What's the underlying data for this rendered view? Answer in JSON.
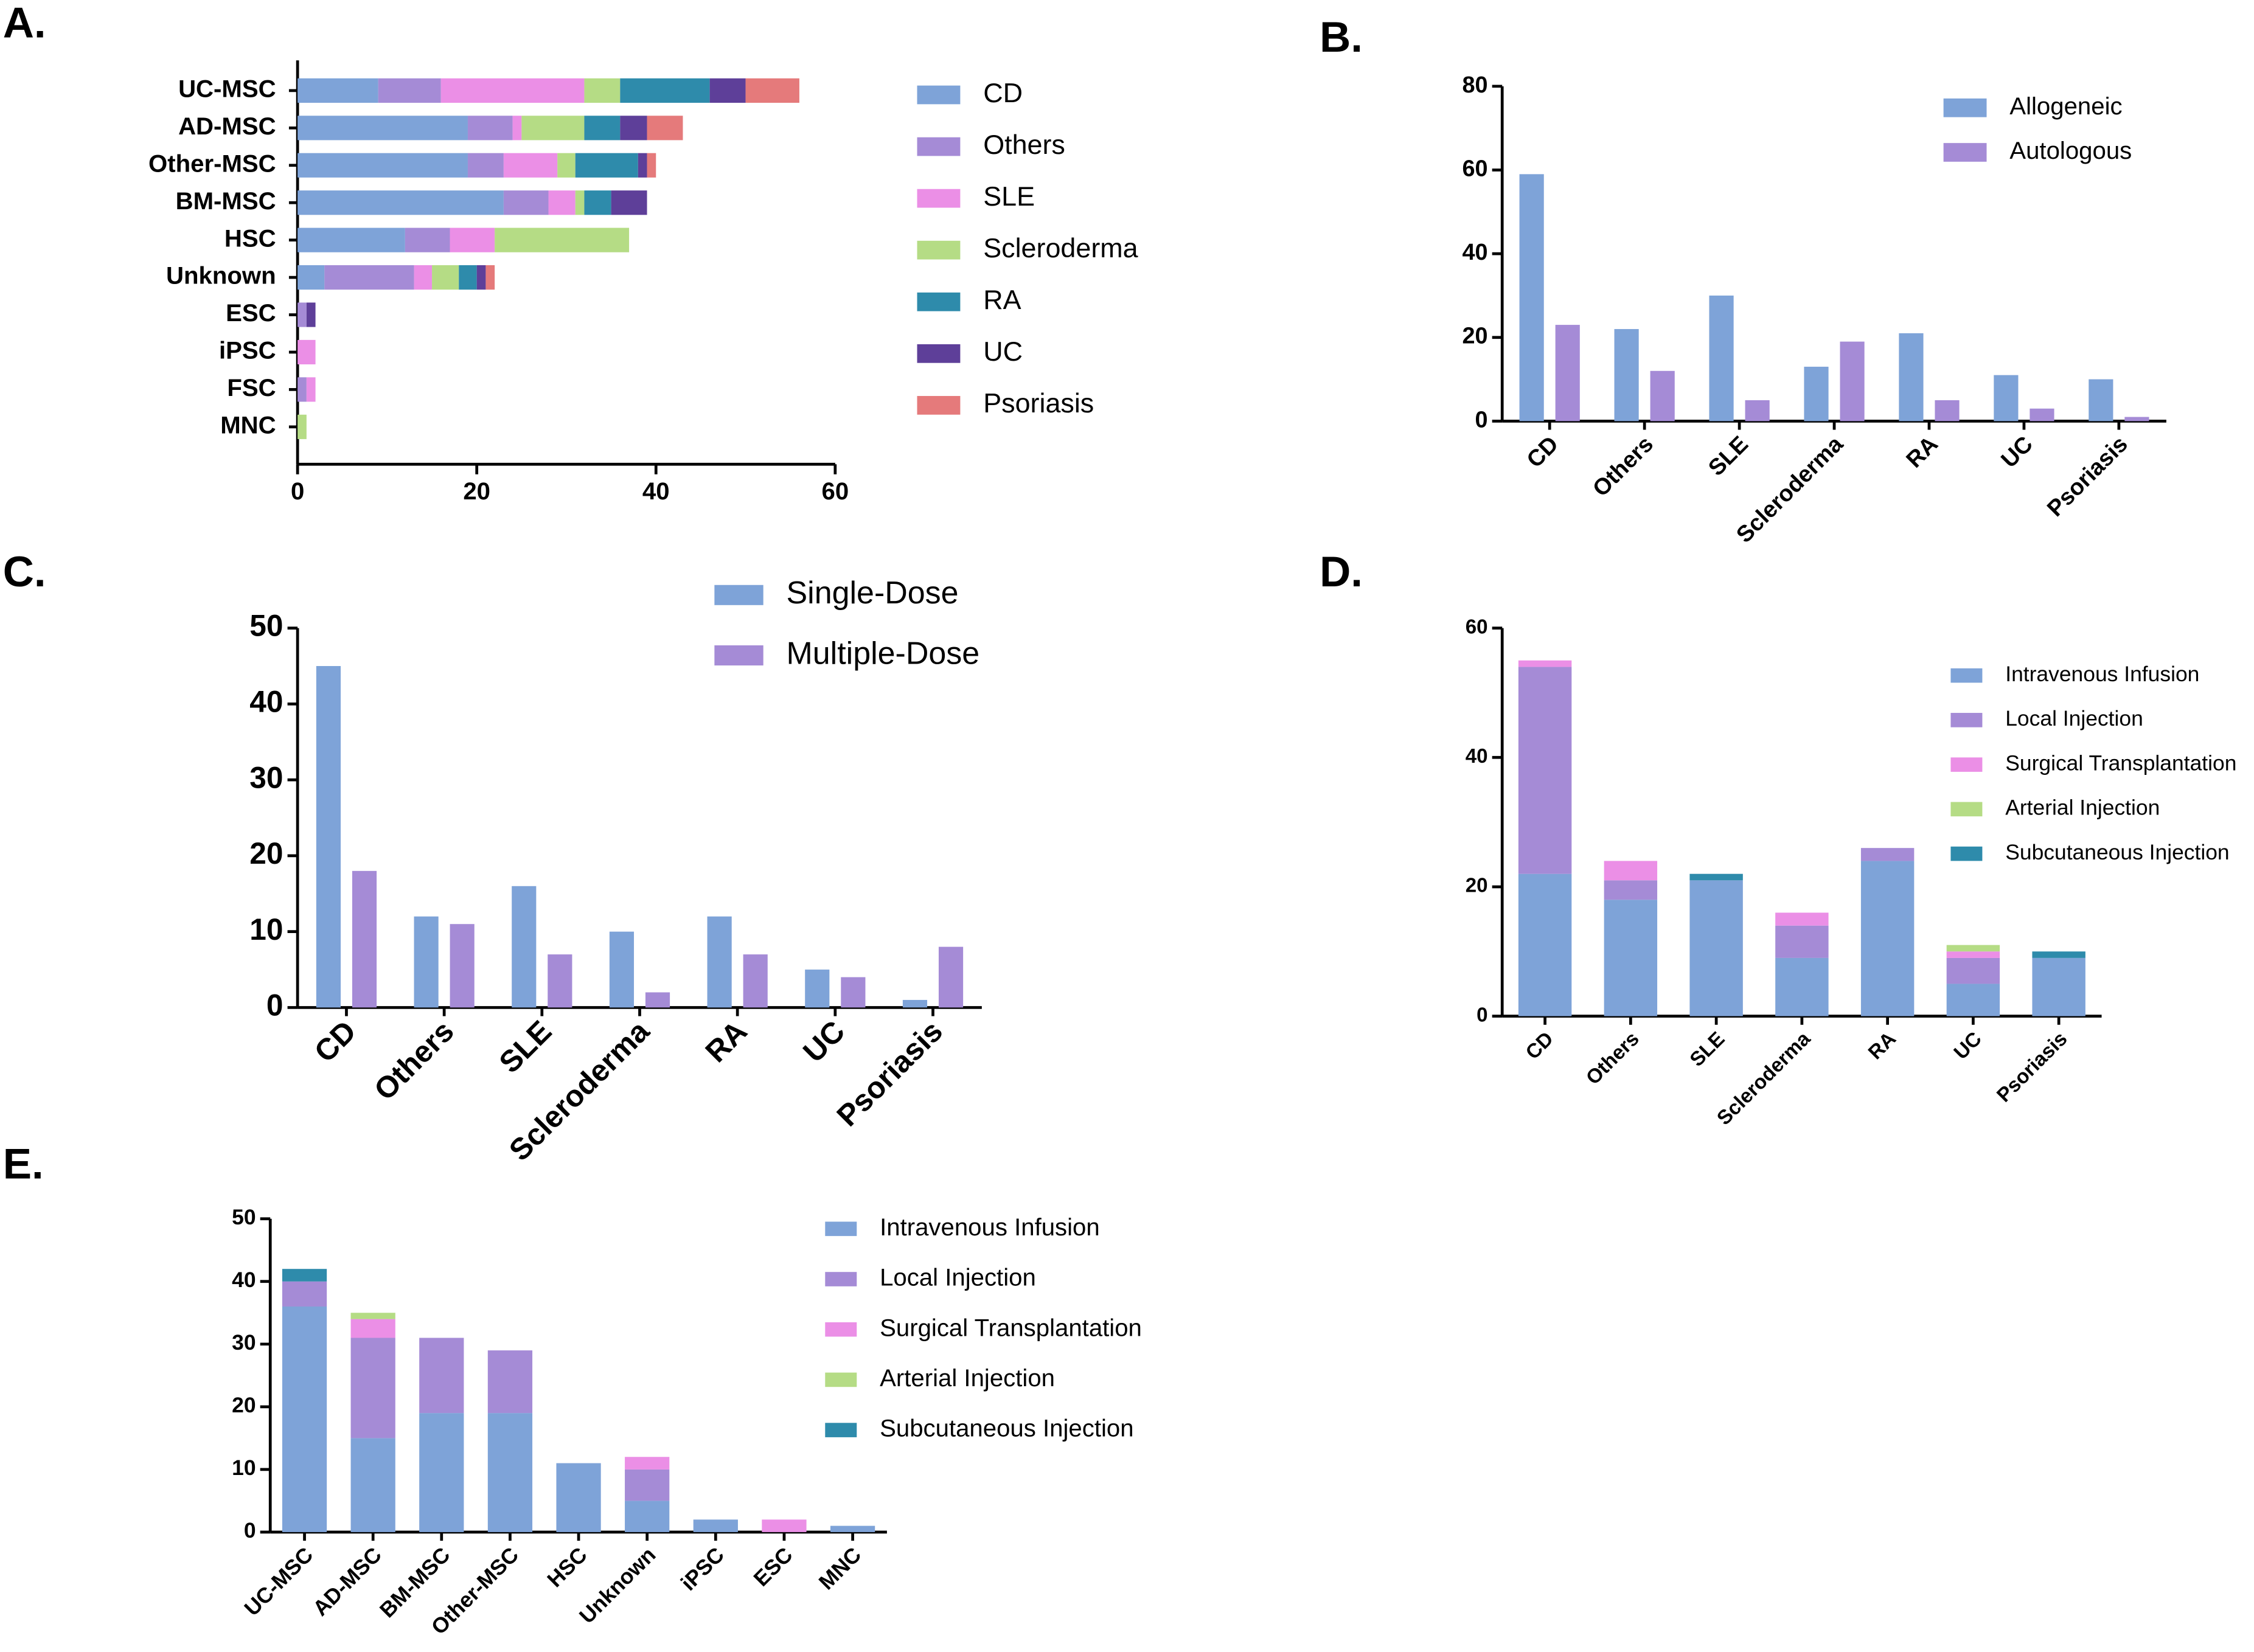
{
  "chart_data": [
    {
      "type": "bar",
      "panel_label": "A.",
      "orientation": "horizontal",
      "stacked": true,
      "categories": [
        "UC-MSC",
        "AD-MSC",
        "Other-MSC",
        "BM-MSC",
        "HSC",
        "Unknown",
        "ESC",
        "iPSC",
        "FSC",
        "MNC"
      ],
      "series": [
        {
          "name": "CD",
          "color": "#7ea3d8",
          "values": [
            9,
            19,
            19,
            23,
            12,
            3,
            0,
            0,
            0,
            0
          ]
        },
        {
          "name": "Others",
          "color": "#a58bd6",
          "values": [
            7,
            5,
            4,
            5,
            5,
            10,
            1,
            0,
            1,
            0
          ]
        },
        {
          "name": "SLE",
          "color": "#eb8fe6",
          "values": [
            16,
            1,
            6,
            3,
            5,
            2,
            0,
            2,
            1,
            0
          ]
        },
        {
          "name": "Scleroderma",
          "color": "#b5dc85",
          "values": [
            4,
            7,
            2,
            1,
            15,
            3,
            0,
            0,
            0,
            1
          ]
        },
        {
          "name": "RA",
          "color": "#2e8bab",
          "values": [
            10,
            4,
            7,
            3,
            0,
            2,
            0,
            0,
            0,
            0
          ]
        },
        {
          "name": "UC",
          "color": "#5e3f99",
          "values": [
            4,
            3,
            1,
            4,
            0,
            1,
            1,
            0,
            0,
            0
          ]
        },
        {
          "name": "Psoriasis",
          "color": "#e57a7b",
          "values": [
            6,
            4,
            1,
            0,
            0,
            1,
            0,
            0,
            0,
            0
          ]
        }
      ],
      "xlim": [
        0,
        60
      ],
      "xticks": [
        0,
        20,
        40,
        60
      ]
    },
    {
      "type": "bar",
      "panel_label": "B.",
      "orientation": "vertical",
      "stacked": false,
      "categories": [
        "CD",
        "Others",
        "SLE",
        "Scleroderma",
        "RA",
        "UC",
        "Psoriasis"
      ],
      "series": [
        {
          "name": "Allogeneic",
          "color": "#7ea3d8",
          "values": [
            59,
            22,
            30,
            13,
            21,
            11,
            10
          ]
        },
        {
          "name": "Autologous",
          "color": "#a58bd6",
          "values": [
            23,
            12,
            5,
            19,
            5,
            3,
            1
          ]
        }
      ],
      "ylim": [
        0,
        80
      ],
      "yticks": [
        0,
        20,
        40,
        60,
        80
      ]
    },
    {
      "type": "bar",
      "panel_label": "C.",
      "orientation": "vertical",
      "stacked": false,
      "categories": [
        "CD",
        "Others",
        "SLE",
        "Scleroderma",
        "RA",
        "UC",
        "Psoriasis"
      ],
      "series": [
        {
          "name": "Single-Dose",
          "color": "#7ea3d8",
          "values": [
            45,
            12,
            16,
            10,
            12,
            5,
            1
          ]
        },
        {
          "name": "Multiple-Dose",
          "color": "#a58bd6",
          "values": [
            18,
            11,
            7,
            2,
            7,
            4,
            8
          ]
        }
      ],
      "ylim": [
        0,
        50
      ],
      "yticks": [
        0,
        10,
        20,
        30,
        40,
        50
      ]
    },
    {
      "type": "bar",
      "panel_label": "D.",
      "orientation": "vertical",
      "stacked": true,
      "categories": [
        "CD",
        "Others",
        "SLE",
        "Scleroderma",
        "RA",
        "UC",
        "Psoriasis"
      ],
      "series": [
        {
          "name": "Intravenous Infusion",
          "color": "#7ea3d8",
          "values": [
            22,
            18,
            21,
            9,
            24,
            5,
            9
          ]
        },
        {
          "name": "Local Injection",
          "color": "#a58bd6",
          "values": [
            32,
            3,
            0,
            5,
            2,
            4,
            0
          ]
        },
        {
          "name": "Surgical Transplantation",
          "color": "#eb8fe6",
          "values": [
            1,
            3,
            0,
            2,
            0,
            1,
            0
          ]
        },
        {
          "name": "Arterial Injection",
          "color": "#b5dc85",
          "values": [
            0,
            0,
            0,
            0,
            0,
            1,
            0
          ]
        },
        {
          "name": "Subcutaneous Injection",
          "color": "#2e8bab",
          "values": [
            0,
            0,
            1,
            0,
            0,
            0,
            1
          ]
        }
      ],
      "ylim": [
        0,
        60
      ],
      "yticks": [
        0,
        20,
        40,
        60
      ]
    },
    {
      "type": "bar",
      "panel_label": "E.",
      "orientation": "vertical",
      "stacked": true,
      "categories": [
        "UC-MSC",
        "AD-MSC",
        "BM-MSC",
        "Other-MSC",
        "HSC",
        "Unknown",
        "iPSC",
        "ESC",
        "MNC"
      ],
      "series": [
        {
          "name": "Intravenous Infusion",
          "color": "#7ea3d8",
          "values": [
            36,
            15,
            19,
            19,
            11,
            5,
            2,
            0,
            1
          ]
        },
        {
          "name": "Local Injection",
          "color": "#a58bd6",
          "values": [
            4,
            16,
            12,
            10,
            0,
            5,
            0,
            0,
            0
          ]
        },
        {
          "name": "Surgical Transplantation",
          "color": "#eb8fe6",
          "values": [
            0,
            3,
            0,
            0,
            0,
            2,
            0,
            2,
            0
          ]
        },
        {
          "name": "Arterial Injection",
          "color": "#b5dc85",
          "values": [
            0,
            1,
            0,
            0,
            0,
            0,
            0,
            0,
            0
          ]
        },
        {
          "name": "Subcutaneous Injection",
          "color": "#2e8bab",
          "values": [
            2,
            0,
            0,
            0,
            0,
            0,
            0,
            0,
            0
          ]
        }
      ],
      "ylim": [
        0,
        50
      ],
      "yticks": [
        0,
        10,
        20,
        30,
        40,
        50
      ]
    }
  ]
}
